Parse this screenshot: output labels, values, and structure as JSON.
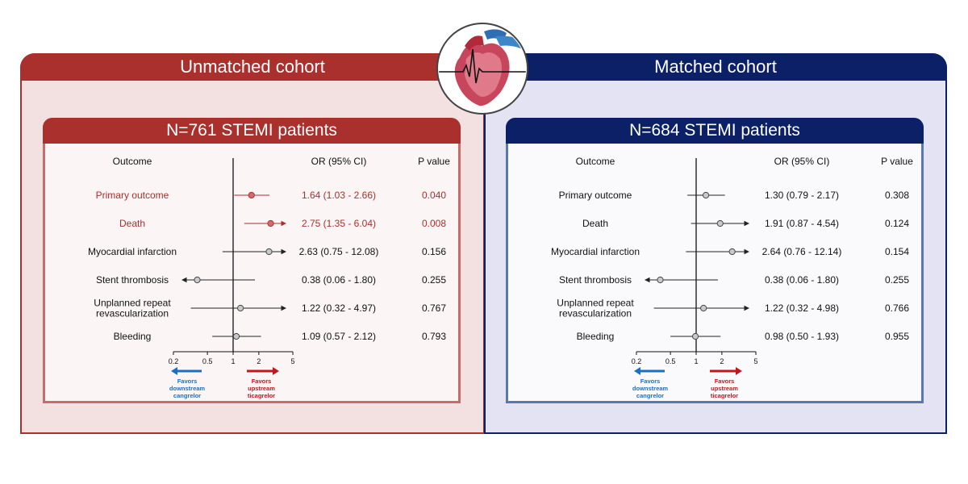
{
  "colors": {
    "unmatched": "#a9302c",
    "matched": "#0b2067",
    "significant_text": "#a9302c",
    "favors_left": "#1c6fc1",
    "favors_right": "#c0171c"
  },
  "heart_logo": {
    "icon": "heart-ecg-icon"
  },
  "headers": {
    "outcome": "Outcome",
    "or": "OR (95% CI)",
    "p": "P value"
  },
  "axis_ticks": [
    "0.2",
    "0.5",
    "1",
    "2",
    "5"
  ],
  "favors": {
    "left": [
      "Favors",
      "downstream",
      "cangrelor"
    ],
    "right": [
      "Favors",
      "upstream",
      "ticagrelor"
    ]
  },
  "chart_data": [
    {
      "type": "forest",
      "panel_title": "Unmatched cohort",
      "title": "N=761 STEMI patients",
      "x_scale": "log",
      "xlim": [
        0.2,
        5
      ],
      "reference": 1,
      "rows": [
        {
          "label": [
            "Primary outcome"
          ],
          "or": 1.64,
          "lo": 1.03,
          "hi": 2.66,
          "or_text": "1.64 (1.03 - 2.66)",
          "p": "0.040",
          "significant": true
        },
        {
          "label": [
            "Death"
          ],
          "or": 2.75,
          "lo": 1.35,
          "hi": 6.04,
          "or_text": "2.75 (1.35 - 6.04)",
          "p": "0.008",
          "significant": true
        },
        {
          "label": [
            "Myocardial infarction"
          ],
          "or": 2.63,
          "lo": 0.75,
          "hi": 12.08,
          "or_text": "2.63 (0.75 - 12.08)",
          "p": "0.156",
          "significant": false
        },
        {
          "label": [
            "Stent thrombosis"
          ],
          "or": 0.38,
          "lo": 0.06,
          "hi": 1.8,
          "or_text": "0.38 (0.06 - 1.80)",
          "p": "0.255",
          "significant": false
        },
        {
          "label": [
            "Unplanned repeat",
            "revascularization"
          ],
          "or": 1.22,
          "lo": 0.32,
          "hi": 4.97,
          "or_text": "1.22 (0.32 - 4.97)",
          "p": "0.767",
          "significant": false
        },
        {
          "label": [
            "Bleeding"
          ],
          "or": 1.09,
          "lo": 0.57,
          "hi": 2.12,
          "or_text": "1.09 (0.57 - 2.12)",
          "p": "0.793",
          "significant": false
        }
      ]
    },
    {
      "type": "forest",
      "panel_title": "Matched cohort",
      "title": "N=684 STEMI patients",
      "x_scale": "log",
      "xlim": [
        0.2,
        5
      ],
      "reference": 1,
      "rows": [
        {
          "label": [
            "Primary outcome"
          ],
          "or": 1.3,
          "lo": 0.79,
          "hi": 2.17,
          "or_text": "1.30 (0.79 - 2.17)",
          "p": "0.308",
          "significant": false
        },
        {
          "label": [
            "Death"
          ],
          "or": 1.91,
          "lo": 0.87,
          "hi": 4.54,
          "or_text": "1.91 (0.87 - 4.54)",
          "p": "0.124",
          "significant": false
        },
        {
          "label": [
            "Myocardial infarction"
          ],
          "or": 2.64,
          "lo": 0.76,
          "hi": 12.14,
          "or_text": "2.64 (0.76 - 12.14)",
          "p": "0.154",
          "significant": false
        },
        {
          "label": [
            "Stent thrombosis"
          ],
          "or": 0.38,
          "lo": 0.06,
          "hi": 1.8,
          "or_text": "0.38 (0.06 - 1.80)",
          "p": "0.255",
          "significant": false
        },
        {
          "label": [
            "Unplanned repeat",
            "revascularization"
          ],
          "or": 1.22,
          "lo": 0.32,
          "hi": 4.98,
          "or_text": "1.22 (0.32 - 4.98)",
          "p": "0.766",
          "significant": false
        },
        {
          "label": [
            "Bleeding"
          ],
          "or": 0.98,
          "lo": 0.5,
          "hi": 1.93,
          "or_text": "0.98 (0.50 - 1.93)",
          "p": "0.955",
          "significant": false
        }
      ]
    }
  ]
}
